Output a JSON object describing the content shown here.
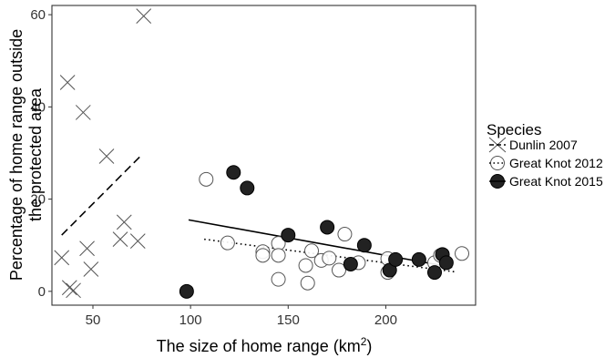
{
  "chart_data": {
    "type": "scatter",
    "title": "",
    "xlabel_main": "The size of home range (km",
    "xlabel_sup": "2",
    "xlabel_tail": ")",
    "ylabel_line1": "Percentage of home range outside",
    "ylabel_line2": "the protected area",
    "xlim": [
      29,
      246
    ],
    "ylim": [
      -3,
      62
    ],
    "x_ticks": [
      50,
      100,
      150,
      200
    ],
    "y_ticks": [
      0,
      20,
      40,
      60
    ],
    "grid": false,
    "legend": {
      "title": "Species",
      "placement": "right",
      "entries": [
        "Dunlin 2007",
        "Great Knot 2012",
        "Great Knot 2015"
      ]
    },
    "series": [
      {
        "name": "Dunlin 2007",
        "marker": "x",
        "trend_style": "dashed",
        "trend": [
          [
            34,
            12.2
          ],
          [
            75,
            29.6
          ]
        ],
        "points": [
          [
            76,
            59.7
          ],
          [
            37,
            45.3
          ],
          [
            45,
            38.8
          ],
          [
            57,
            29.3
          ],
          [
            66,
            15
          ],
          [
            34,
            7.3
          ],
          [
            47,
            9.3
          ],
          [
            64,
            11.3
          ],
          [
            73,
            10.9
          ],
          [
            49,
            4.8
          ],
          [
            38,
            0.8
          ],
          [
            40,
            0.2
          ]
        ]
      },
      {
        "name": "Great Knot 2012",
        "marker": "open-circle",
        "trend_style": "dotted",
        "trend": [
          [
            107,
            11.3
          ],
          [
            236,
            4.2
          ]
        ],
        "points": [
          [
            108,
            24.3
          ],
          [
            119,
            10.5
          ],
          [
            137,
            8.6
          ],
          [
            137,
            7.8
          ],
          [
            145,
            10.4
          ],
          [
            145,
            7.8
          ],
          [
            145,
            2.6
          ],
          [
            159,
            5.6
          ],
          [
            160,
            1.8
          ],
          [
            162,
            8.8
          ],
          [
            167,
            6.7
          ],
          [
            171,
            7.2
          ],
          [
            176,
            4.6
          ],
          [
            179,
            12.4
          ],
          [
            186,
            6.2
          ],
          [
            201,
            4.1
          ],
          [
            201,
            7.1
          ],
          [
            225,
            6.2
          ],
          [
            228,
            7.8
          ],
          [
            239,
            8.2
          ]
        ]
      },
      {
        "name": "Great Knot 2015",
        "marker": "filled-circle",
        "trend_style": "solid",
        "trend": [
          [
            99,
            15.5
          ],
          [
            234,
            5.2
          ]
        ],
        "points": [
          [
            98,
            0
          ],
          [
            122,
            25.8
          ],
          [
            129,
            22.4
          ],
          [
            150,
            12.2
          ],
          [
            170,
            13.9
          ],
          [
            182,
            5.9
          ],
          [
            189,
            10
          ],
          [
            202,
            4.6
          ],
          [
            205,
            6.9
          ],
          [
            217,
            6.9
          ],
          [
            225,
            4.1
          ],
          [
            229,
            8
          ],
          [
            231,
            6.2
          ]
        ]
      }
    ]
  }
}
